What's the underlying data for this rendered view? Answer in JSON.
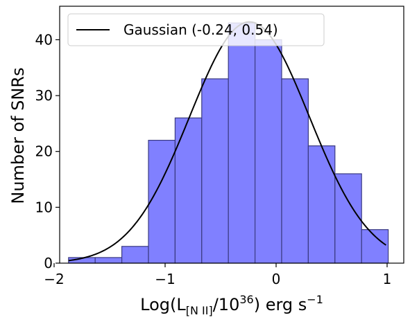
{
  "chart_data": {
    "type": "bar",
    "subtype": "histogram",
    "bin_edges": [
      -1.87,
      -1.63,
      -1.39,
      -1.15,
      -0.91,
      -0.67,
      -0.43,
      -0.19,
      0.05,
      0.29,
      0.53,
      0.77,
      1.01
    ],
    "counts": [
      1,
      1,
      3,
      22,
      26,
      33,
      43,
      40,
      33,
      21,
      16,
      6
    ],
    "bar_color": "#8080ff",
    "bar_edge_color": "#3a3a80",
    "curve": {
      "type": "line",
      "function": "gaussian",
      "mean": -0.24,
      "sigma": 0.54,
      "peak": 43.2,
      "x_range": [
        -1.87,
        0.99
      ],
      "color": "#000000"
    },
    "xlim": [
      -1.95,
      1.15
    ],
    "ylim": [
      0,
      46
    ],
    "x_ticks": [
      -2,
      -1,
      0,
      1
    ],
    "x_tick_labels": [
      "−2",
      "−1",
      "0",
      "1"
    ],
    "y_ticks": [
      0,
      10,
      20,
      30,
      40
    ],
    "y_tick_labels": [
      "0",
      "10",
      "20",
      "30",
      "40"
    ],
    "ylabel": "Number of SNRs",
    "xlabel": {
      "prefix": "Log(L",
      "subscript": "[N II]",
      "middle": "/10",
      "superscript": "36",
      "suffix": ") erg s",
      "suffix_superscript": "−1"
    },
    "legend": {
      "position": "top-left",
      "entries": [
        {
          "label": "Gaussian (-0.24, 0.54)",
          "color": "#000000"
        }
      ]
    },
    "grid": false
  }
}
